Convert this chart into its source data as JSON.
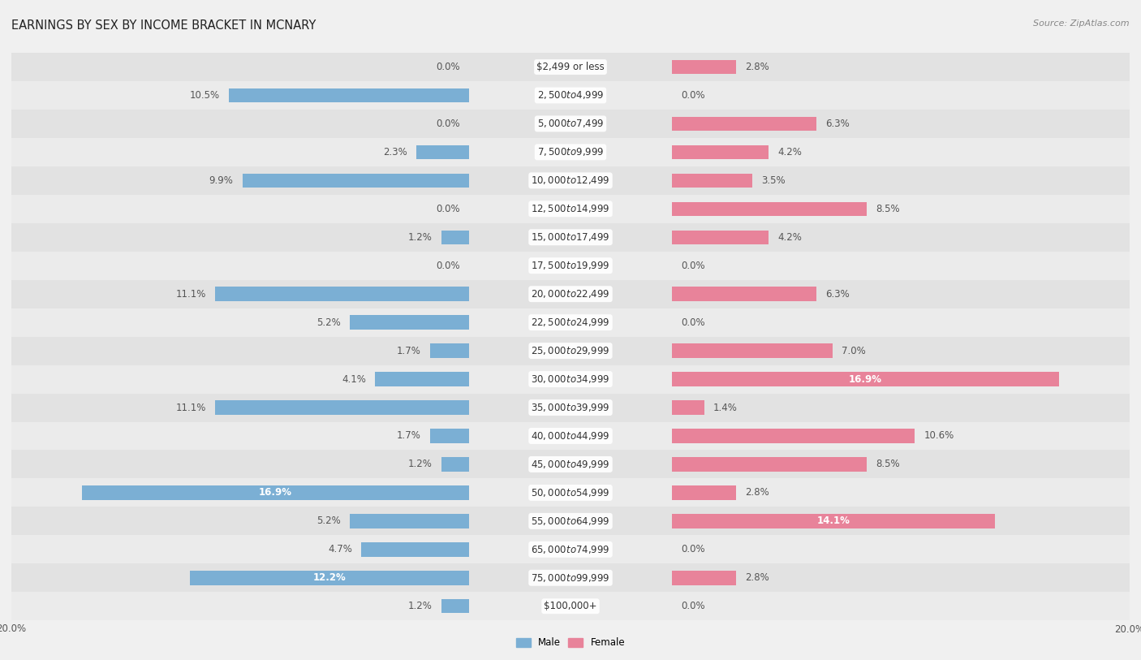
{
  "title": "EARNINGS BY SEX BY INCOME BRACKET IN MCNARY",
  "source": "Source: ZipAtlas.com",
  "categories": [
    "$2,499 or less",
    "$2,500 to $4,999",
    "$5,000 to $7,499",
    "$7,500 to $9,999",
    "$10,000 to $12,499",
    "$12,500 to $14,999",
    "$15,000 to $17,499",
    "$17,500 to $19,999",
    "$20,000 to $22,499",
    "$22,500 to $24,999",
    "$25,000 to $29,999",
    "$30,000 to $34,999",
    "$35,000 to $39,999",
    "$40,000 to $44,999",
    "$45,000 to $49,999",
    "$50,000 to $54,999",
    "$55,000 to $64,999",
    "$65,000 to $74,999",
    "$75,000 to $99,999",
    "$100,000+"
  ],
  "male_values": [
    0.0,
    10.5,
    0.0,
    2.3,
    9.9,
    0.0,
    1.2,
    0.0,
    11.1,
    5.2,
    1.7,
    4.1,
    11.1,
    1.7,
    1.2,
    16.9,
    5.2,
    4.7,
    12.2,
    1.2
  ],
  "female_values": [
    2.8,
    0.0,
    6.3,
    4.2,
    3.5,
    8.5,
    4.2,
    0.0,
    6.3,
    0.0,
    7.0,
    16.9,
    1.4,
    10.6,
    8.5,
    2.8,
    14.1,
    0.0,
    2.8,
    0.0
  ],
  "male_color": "#7bafd4",
  "female_color": "#e8839a",
  "axis_max": 20.0,
  "bg_color": "#f0f0f0",
  "row_color_even": "#e2e2e2",
  "row_color_odd": "#ebebeb",
  "title_fontsize": 10.5,
  "label_fontsize": 8.5,
  "category_fontsize": 8.5,
  "source_fontsize": 8,
  "bar_height": 0.5,
  "inside_label_threshold": 12.0
}
